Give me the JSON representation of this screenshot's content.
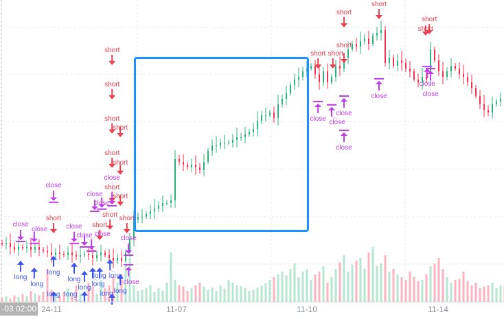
{
  "chart_data": {
    "type": "candlestick",
    "title": "",
    "x_tick_labels": [
      "24-11",
      "11-07",
      "11-10",
      "11-14"
    ],
    "cursor_label": "-03 02:00",
    "grid": true,
    "colors": {
      "up": "#2bb27a",
      "down": "#f0304c",
      "up_volume": "#b4e6d2",
      "down_volume": "#fbb4bf",
      "short": "#e8404f",
      "long": "#3b55f0",
      "close": "#c03ce8",
      "selection": "#1e90ff"
    },
    "closes": [
      21,
      21.5,
      20,
      19,
      20,
      19.5,
      20,
      19,
      20,
      19,
      18.5,
      18,
      17,
      18,
      17.5,
      17,
      18,
      17,
      16.5,
      17,
      17.5,
      17,
      16,
      17,
      18,
      17,
      16,
      15,
      16,
      15,
      18,
      23,
      30,
      31,
      31,
      32,
      33,
      34,
      35,
      36,
      36,
      37,
      52,
      51,
      50,
      49,
      50,
      49,
      48,
      51,
      55,
      57,
      57,
      58,
      58,
      58,
      59,
      60,
      60,
      61,
      62,
      63,
      66,
      68,
      68,
      69,
      67,
      72,
      74,
      76,
      79,
      81,
      82,
      84,
      85,
      86,
      83,
      80,
      84,
      80,
      82,
      86,
      85,
      89,
      92,
      94,
      93,
      95,
      96,
      94,
      97,
      98,
      99,
      87,
      89,
      86,
      88,
      87,
      85,
      84,
      81,
      80,
      82,
      81,
      92,
      88,
      84,
      82,
      84,
      86,
      85,
      83,
      82,
      80,
      78,
      75,
      72,
      70,
      69,
      72,
      73,
      74,
      73
    ],
    "volumes": [
      8,
      10,
      6,
      12,
      9,
      14,
      10,
      20,
      15,
      12,
      18,
      60,
      22,
      14,
      10,
      18,
      25,
      12,
      30,
      16,
      20,
      35,
      28,
      15,
      40,
      25,
      30,
      45,
      35,
      50,
      65,
      80,
      30,
      20,
      22,
      25,
      30,
      18,
      25,
      20,
      35,
      90,
      40,
      30,
      28,
      20,
      25,
      30,
      35,
      28,
      22,
      26,
      20,
      30,
      24,
      40,
      35,
      30,
      28,
      25,
      20,
      22,
      26,
      30,
      34,
      40,
      45,
      50,
      55,
      48,
      60,
      70,
      45,
      55,
      60,
      40,
      50,
      55,
      65,
      35,
      45,
      60,
      72,
      85,
      55,
      68,
      75,
      80,
      60,
      90,
      100,
      65,
      70,
      85,
      55,
      60,
      50,
      45,
      40,
      55,
      45,
      38,
      40,
      50,
      65,
      70,
      80,
      60,
      45,
      35,
      40,
      42,
      55,
      38,
      30,
      35,
      25,
      28,
      30,
      35,
      25,
      30,
      28
    ],
    "markers": [
      {
        "type": "short",
        "label": "short",
        "i": 26.7,
        "p": 86.3
      },
      {
        "type": "short",
        "label": "short",
        "i": 26.7,
        "p": 73.8
      },
      {
        "type": "short",
        "label": "short",
        "i": 26.7,
        "p": 61.3
      },
      {
        "type": "short",
        "label": "short",
        "i": 28.7,
        "p": 60
      },
      {
        "type": "short",
        "label": "short",
        "i": 26.7,
        "p": 48.8
      },
      {
        "type": "short",
        "label": "short",
        "i": 28.7,
        "p": 46.3
      },
      {
        "type": "short",
        "label": "short",
        "i": 26.7,
        "p": 36.3
      },
      {
        "type": "short",
        "label": "short",
        "i": 28.7,
        "p": 35
      },
      {
        "type": "short",
        "label": "short",
        "i": 12.5,
        "p": 25
      },
      {
        "type": "short",
        "label": "short",
        "i": 23.7,
        "p": 22.5
      },
      {
        "type": "short",
        "label": "short",
        "i": 26.2,
        "p": 26.3
      },
      {
        "type": "short",
        "label": "short",
        "i": 30.3,
        "p": 25
      },
      {
        "type": "short",
        "label": "short",
        "i": 76.7,
        "p": 85
      },
      {
        "type": "short",
        "label": "short",
        "i": 80.3,
        "p": 85
      },
      {
        "type": "short",
        "label": "short",
        "i": 83,
        "p": 100
      },
      {
        "type": "short",
        "label": "short",
        "i": 83,
        "p": 87
      },
      {
        "type": "short",
        "label": "short",
        "i": 91.5,
        "p": 103
      },
      {
        "type": "short",
        "label": "short",
        "i": 103.7,
        "p": 97.5
      },
      {
        "type": "short",
        "label": "short",
        "i": 102.8,
        "p": 97
      },
      {
        "type": "long",
        "label": "long",
        "i": 4.5,
        "p": 15
      },
      {
        "type": "long",
        "label": "long",
        "i": 7.8,
        "p": 12.5
      },
      {
        "type": "long",
        "label": "long",
        "i": 12.5,
        "p": 16.8
      },
      {
        "type": "long",
        "label": "long",
        "i": 17.5,
        "p": 14.3
      },
      {
        "type": "long",
        "label": "long",
        "i": 20,
        "p": 11.3
      },
      {
        "type": "long",
        "label": "long",
        "i": 22,
        "p": 12.5
      },
      {
        "type": "long",
        "label": "long",
        "i": 23.7,
        "p": 12.5
      },
      {
        "type": "long",
        "label": "long",
        "i": 26.2,
        "p": 15.5
      },
      {
        "type": "long",
        "label": "long",
        "i": 28.7,
        "p": 10
      },
      {
        "type": "long",
        "label": "long",
        "i": 12.5,
        "p": 3.8
      },
      {
        "type": "long",
        "label": "long",
        "i": 20,
        "p": 3.8
      },
      {
        "type": "long",
        "label": "long",
        "i": 26.7,
        "p": 3
      },
      {
        "type": "close-down",
        "label": "close",
        "i": 4.5,
        "p": 22
      },
      {
        "type": "close-down",
        "label": "close",
        "i": 7.8,
        "p": 21.3
      },
      {
        "type": "close-down",
        "label": "close",
        "i": 12.5,
        "p": 36.3
      },
      {
        "type": "close-down",
        "label": "close",
        "i": 17.5,
        "p": 21.3
      },
      {
        "type": "close-down",
        "label": "close",
        "i": 20,
        "p": 20
      },
      {
        "type": "close-down",
        "label": "close",
        "i": 21.7,
        "p": 18.5
      },
      {
        "type": "close-down",
        "label": "close",
        "i": 22.5,
        "p": 33
      },
      {
        "type": "close-down",
        "label": "close",
        "i": 24.2,
        "p": 33.8
      },
      {
        "type": "close-down",
        "label": "close",
        "i": 26.7,
        "p": 35
      },
      {
        "type": "close-down",
        "label": "close",
        "i": 30.7,
        "p": 17
      },
      {
        "type": "close-up",
        "label": "close",
        "i": 30.7,
        "p": 13.5
      },
      {
        "type": "close-up",
        "label": "close",
        "i": 76.7,
        "p": 73
      },
      {
        "type": "close-up",
        "label": "close",
        "i": 80,
        "p": 71.8
      },
      {
        "type": "close-up",
        "label": "close",
        "i": 83,
        "p": 75
      },
      {
        "type": "close-up",
        "label": "close",
        "i": 83,
        "p": 62.5
      },
      {
        "type": "close-up",
        "label": "close",
        "i": 91.5,
        "p": 81.3
      },
      {
        "type": "close-up",
        "label": "close",
        "i": 103.2,
        "p": 85.8
      },
      {
        "type": "close-up",
        "label": "close",
        "i": 104,
        "p": 85
      }
    ]
  }
}
